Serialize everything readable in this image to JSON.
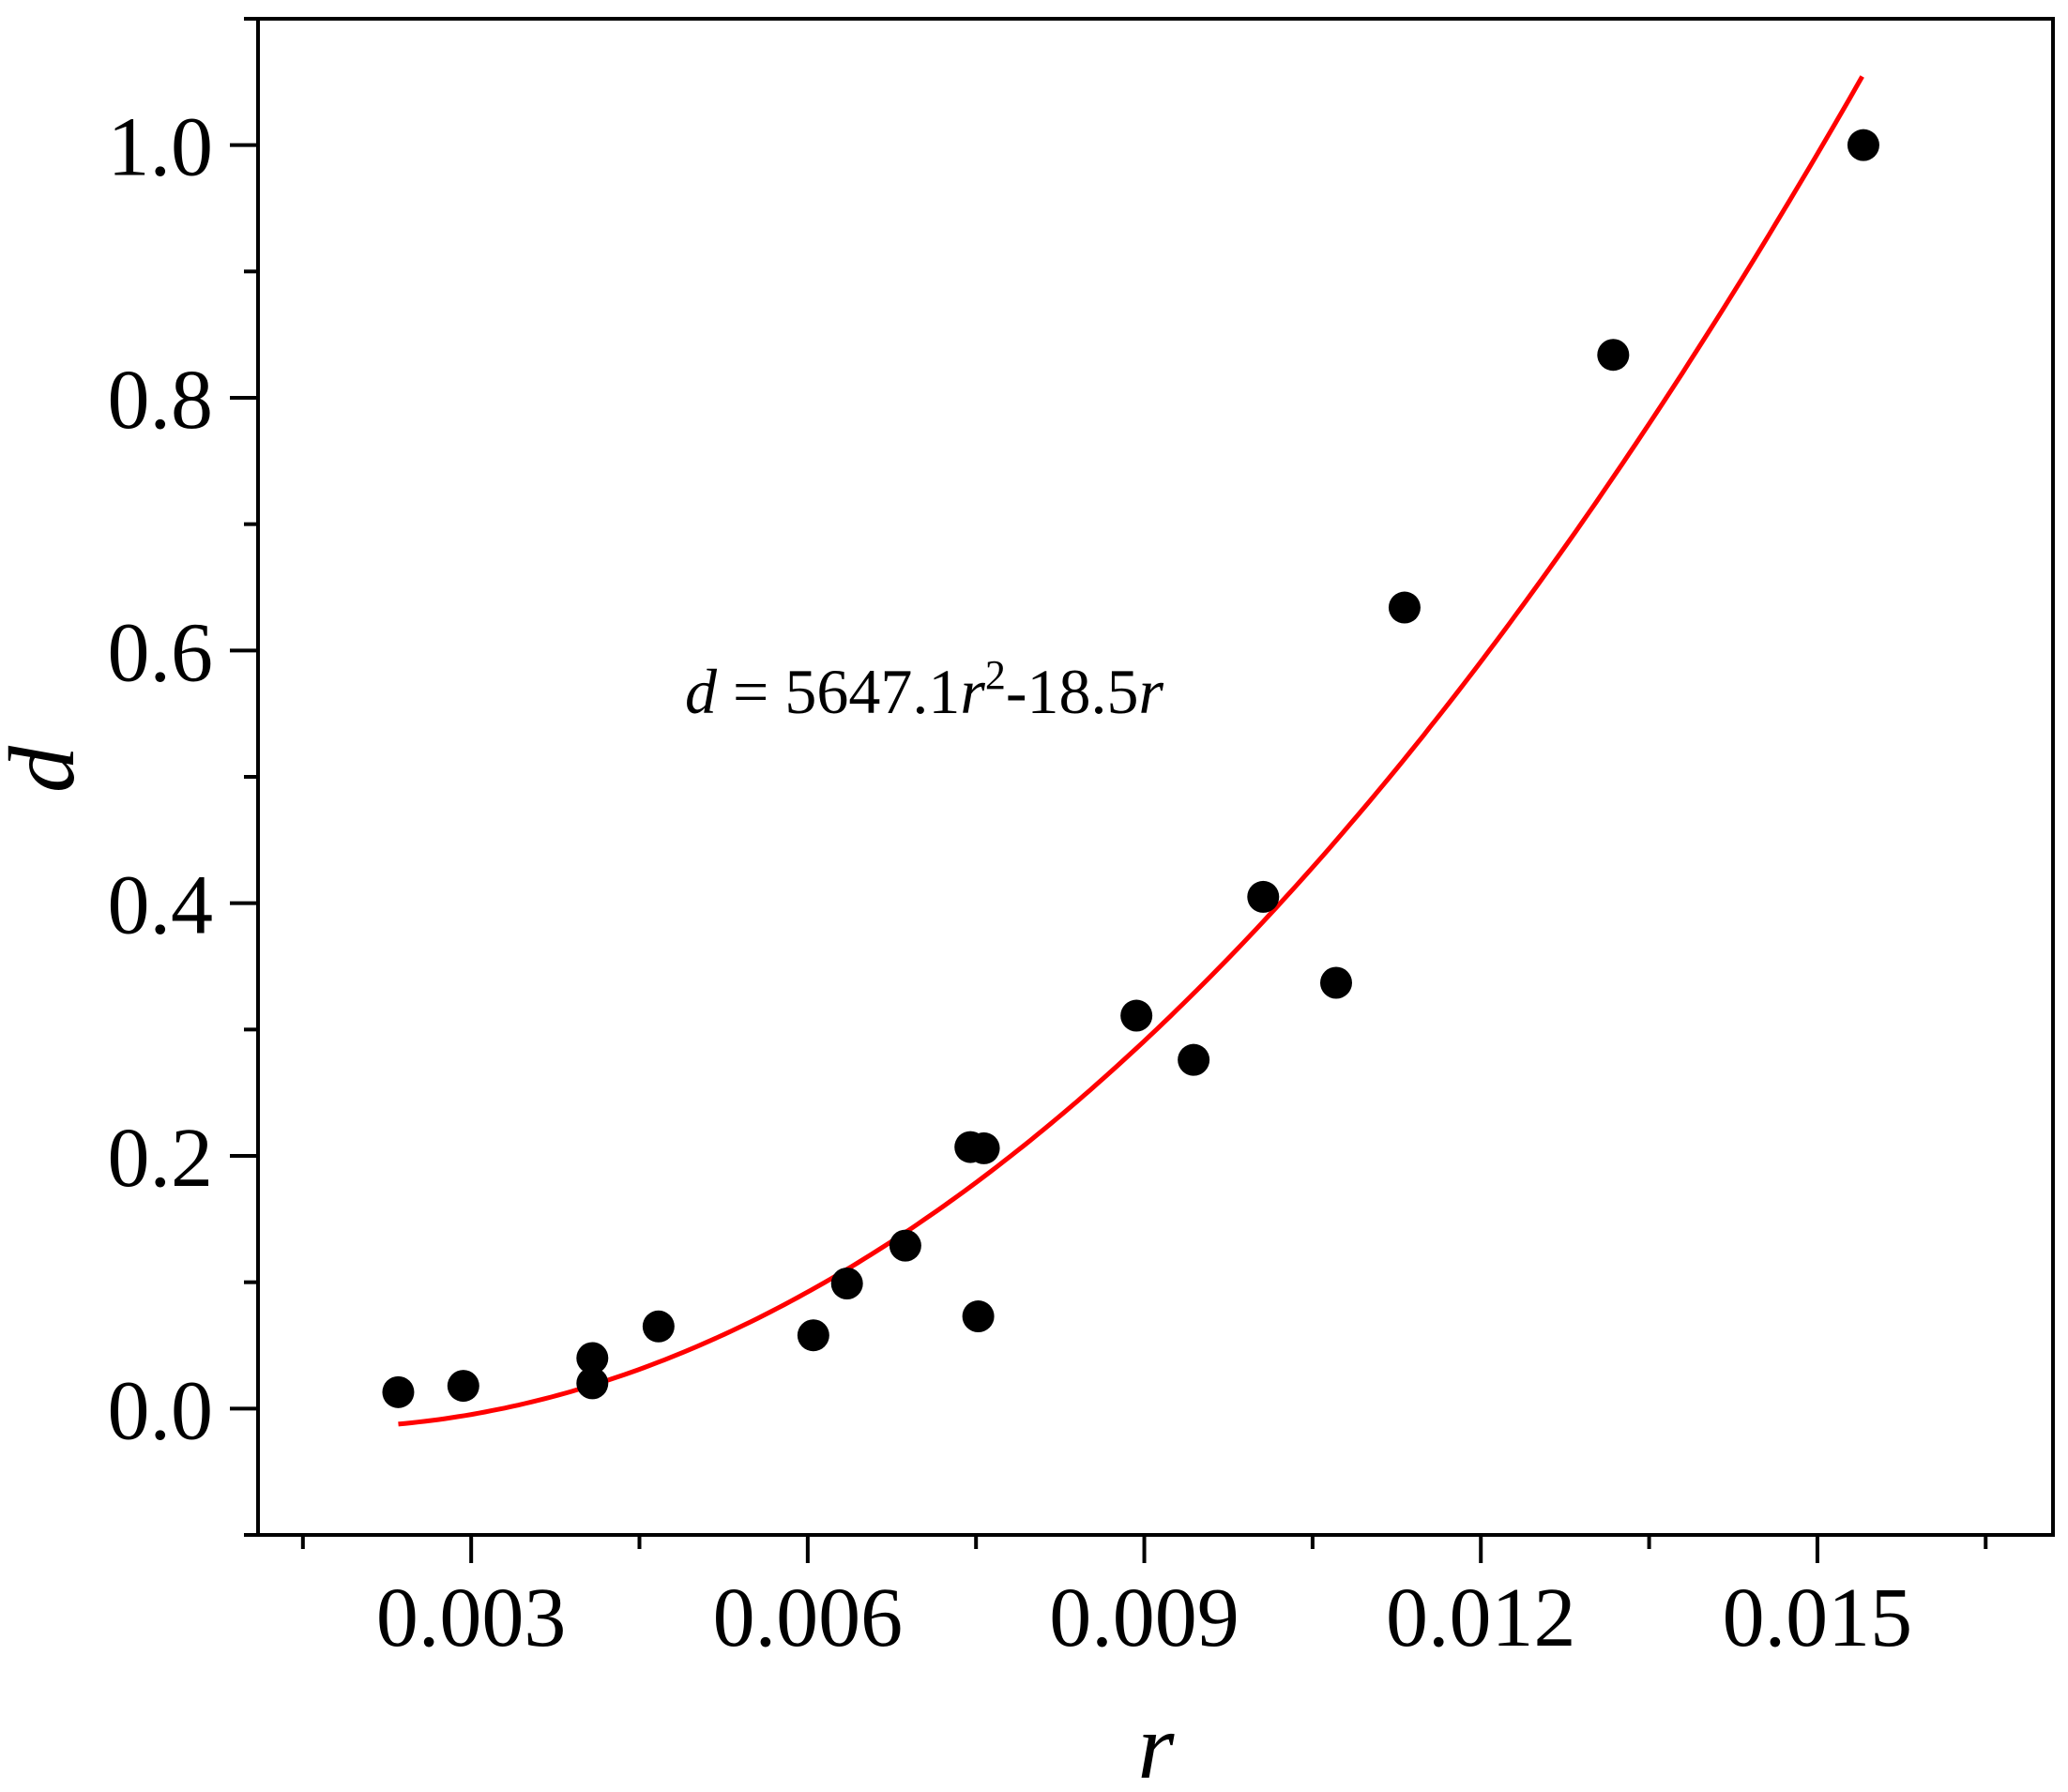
{
  "chart_data": {
    "type": "scatter",
    "title": "",
    "xlabel": "r",
    "ylabel": "d",
    "xlim": [
      0.0011,
      0.0171
    ],
    "ylim": [
      -0.1,
      1.1
    ],
    "x_ticks": [
      0.003,
      0.006,
      0.009,
      0.012,
      0.015
    ],
    "x_tick_labels": [
      "0.003",
      "0.006",
      "0.009",
      "0.012",
      "0.015"
    ],
    "y_ticks": [
      0.0,
      0.2,
      0.4,
      0.6,
      0.8,
      1.0
    ],
    "y_tick_labels": [
      "0.0",
      "0.2",
      "0.4",
      "0.6",
      "0.8",
      "1.0"
    ],
    "grid": false,
    "series": [
      {
        "kind": "scatter",
        "color": "#000000",
        "points": [
          {
            "x": 0.00235,
            "y": 0.013
          },
          {
            "x": 0.00293,
            "y": 0.018
          },
          {
            "x": 0.00408,
            "y": 0.04
          },
          {
            "x": 0.00408,
            "y": 0.02
          },
          {
            "x": 0.00467,
            "y": 0.065
          },
          {
            "x": 0.00605,
            "y": 0.058
          },
          {
            "x": 0.00635,
            "y": 0.099
          },
          {
            "x": 0.00687,
            "y": 0.129
          },
          {
            "x": 0.00745,
            "y": 0.207
          },
          {
            "x": 0.00757,
            "y": 0.206
          },
          {
            "x": 0.00752,
            "y": 0.073
          },
          {
            "x": 0.00893,
            "y": 0.311
          },
          {
            "x": 0.00944,
            "y": 0.276
          },
          {
            "x": 0.01006,
            "y": 0.405
          },
          {
            "x": 0.01071,
            "y": 0.337
          },
          {
            "x": 0.01132,
            "y": 0.634
          },
          {
            "x": 0.01318,
            "y": 0.834
          },
          {
            "x": 0.01541,
            "y": 1.0
          }
        ]
      },
      {
        "kind": "fit-line",
        "color": "#ff0000",
        "coefficients": {
          "a2": 5647.1,
          "a1": -18.5
        },
        "x_range": [
          0.00235,
          0.0154
        ]
      }
    ],
    "annotation": {
      "var": "d",
      "eq": " = 5647.1",
      "r1": "r",
      "exp": "2",
      "mid": "-18.5",
      "r2": "r"
    }
  }
}
